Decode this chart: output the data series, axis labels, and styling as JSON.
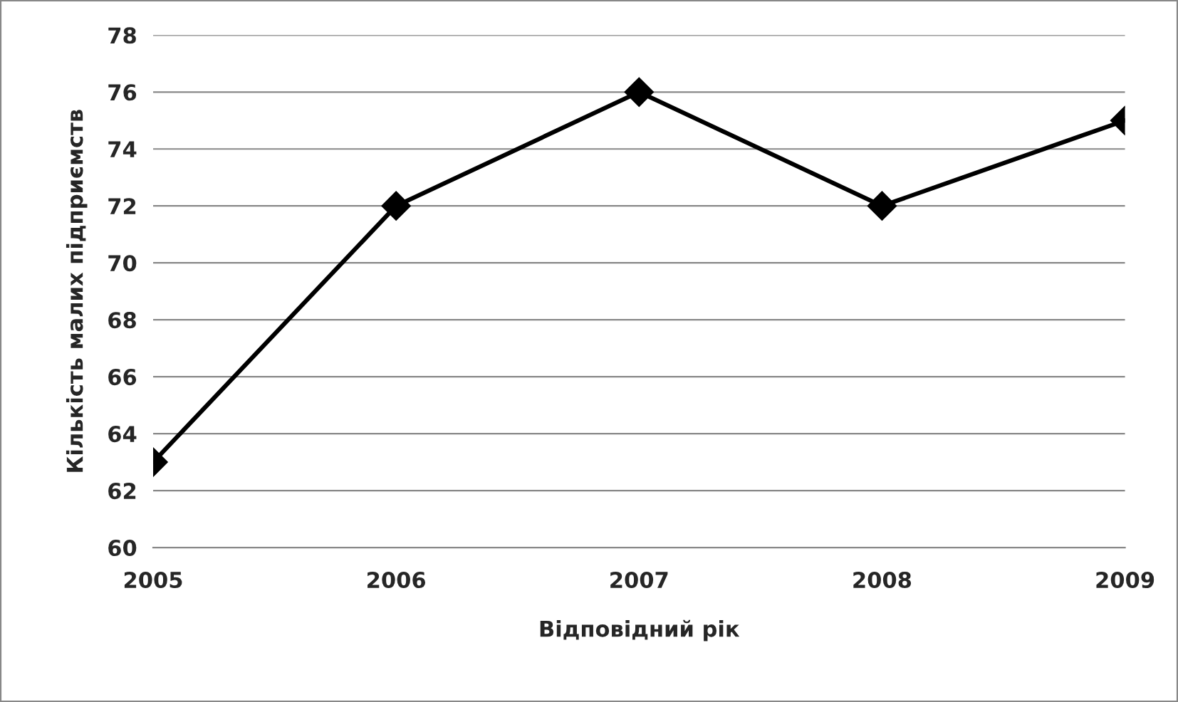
{
  "chart_data": {
    "type": "line",
    "xlabel": "Відповідний рік",
    "ylabel": "Кількість малих підприємств",
    "categories": [
      "2005",
      "2006",
      "2007",
      "2008",
      "2009"
    ],
    "series": [
      {
        "color": "#000000",
        "values": [
          63,
          72,
          76,
          72,
          75
        ]
      }
    ],
    "ylim": [
      60,
      78
    ],
    "yticks": [
      60,
      62,
      64,
      66,
      68,
      70,
      72,
      74,
      76,
      78
    ],
    "grid": "y",
    "marker": "diamond",
    "line_style": "solid",
    "legend": false
  }
}
